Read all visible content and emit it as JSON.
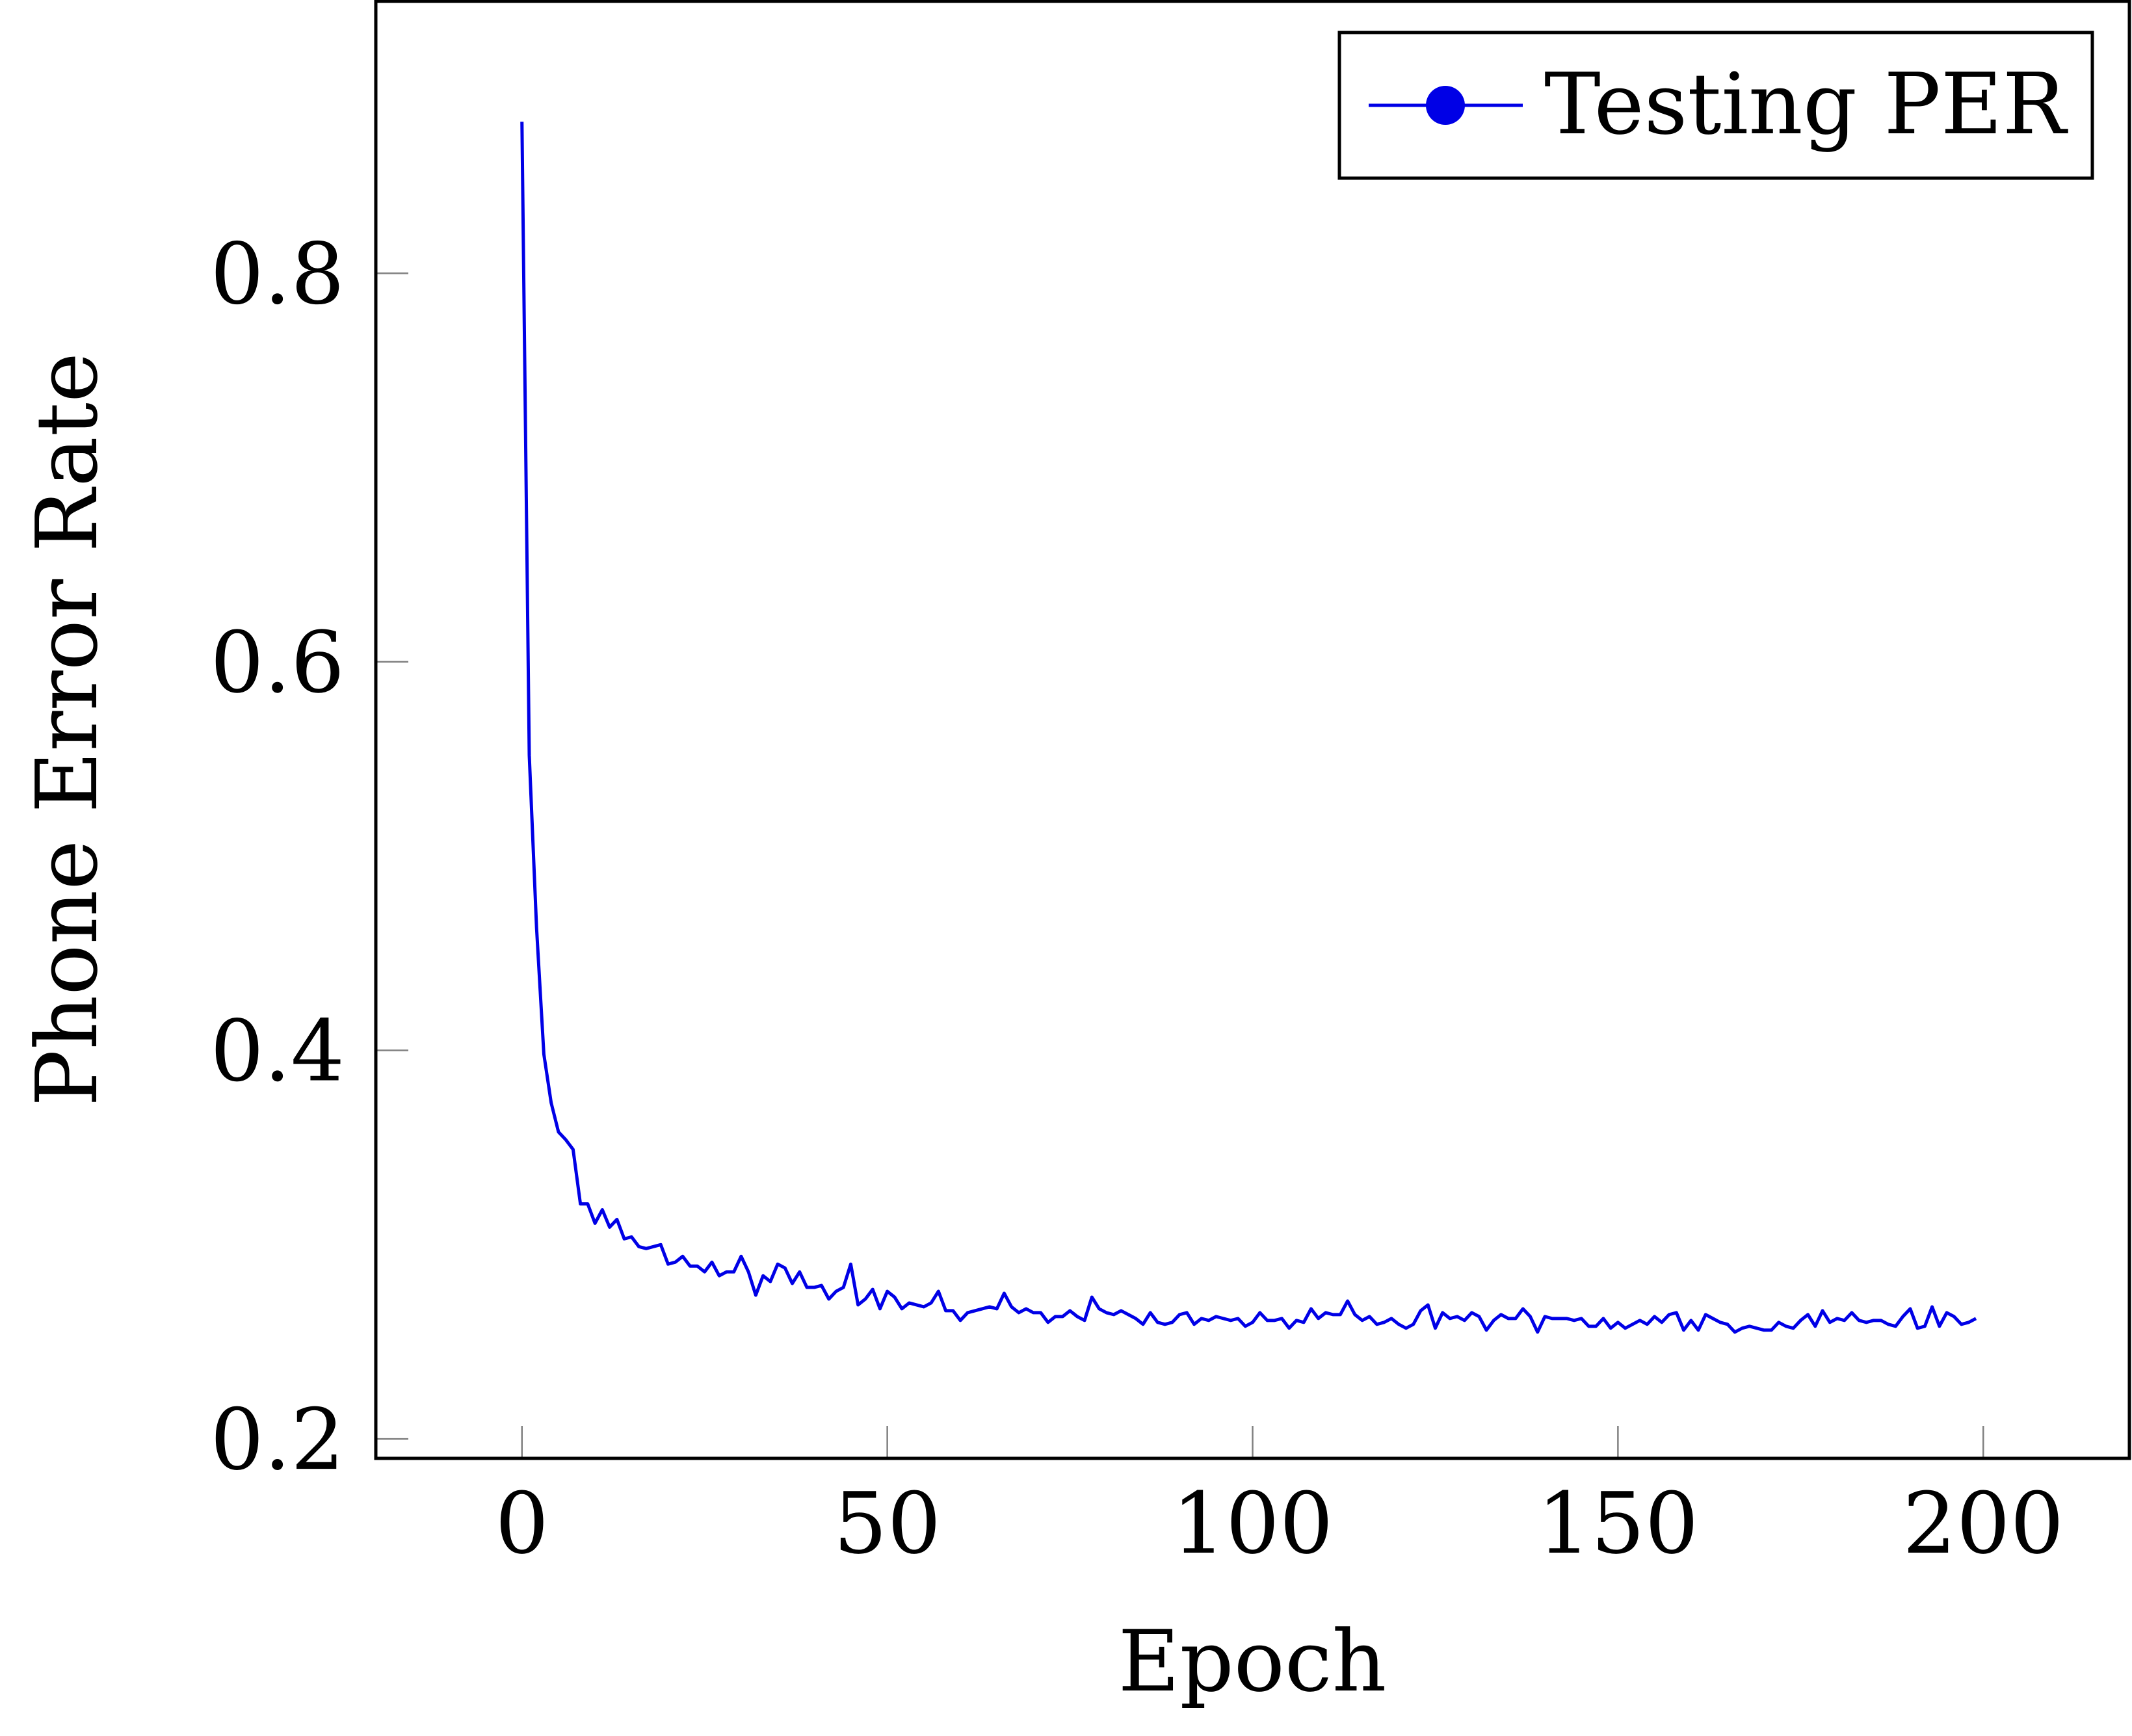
{
  "chart_data": {
    "type": "line",
    "xlabel": "Epoch",
    "ylabel": "Phone Error Rate",
    "xlim": [
      -20,
      220
    ],
    "ylim": [
      0.19,
      0.94
    ],
    "xticks": [
      0,
      50,
      100,
      150,
      200
    ],
    "yticks": [
      0.2,
      0.4,
      0.6,
      0.8
    ],
    "xtick_labels": [
      "0",
      "50",
      "100",
      "150",
      "200"
    ],
    "ytick_labels": [
      "0.2",
      "0.4",
      "0.6",
      "0.8"
    ],
    "legend_position": "top-right",
    "grid": false,
    "series": [
      {
        "name": "Testing PER",
        "color": "#0000e6",
        "marker": "circle",
        "x": [
          0,
          1,
          2,
          3,
          4,
          5,
          6,
          7,
          8,
          9,
          10,
          11,
          12,
          13,
          14,
          15,
          16,
          17,
          18,
          19,
          20,
          21,
          22,
          23,
          24,
          25,
          26,
          27,
          28,
          29,
          30,
          31,
          32,
          33,
          34,
          35,
          36,
          37,
          38,
          39,
          40,
          41,
          42,
          43,
          44,
          45,
          46,
          47,
          48,
          49,
          50,
          51,
          52,
          53,
          54,
          55,
          56,
          57,
          58,
          59,
          60,
          61,
          62,
          63,
          64,
          65,
          66,
          67,
          68,
          69,
          70,
          71,
          72,
          73,
          74,
          75,
          76,
          77,
          78,
          79,
          80,
          81,
          82,
          83,
          84,
          85,
          86,
          87,
          88,
          89,
          90,
          91,
          92,
          93,
          94,
          95,
          96,
          97,
          98,
          99,
          100,
          101,
          102,
          103,
          104,
          105,
          106,
          107,
          108,
          109,
          110,
          111,
          112,
          113,
          114,
          115,
          116,
          117,
          118,
          119,
          120,
          121,
          122,
          123,
          124,
          125,
          126,
          127,
          128,
          129,
          130,
          131,
          132,
          133,
          134,
          135,
          136,
          137,
          138,
          139,
          140,
          141,
          142,
          143,
          144,
          145,
          146,
          147,
          148,
          149,
          150,
          151,
          152,
          153,
          154,
          155,
          156,
          157,
          158,
          159,
          160,
          161,
          162,
          163,
          164,
          165,
          166,
          167,
          168,
          169,
          170,
          171,
          172,
          173,
          174,
          175,
          176,
          177,
          178,
          179,
          180,
          181,
          182,
          183,
          184,
          185,
          186,
          187,
          188,
          189,
          190,
          191,
          192,
          193,
          194,
          195,
          196,
          197,
          198,
          199
        ],
        "values": [
          0.878,
          0.552,
          0.463,
          0.398,
          0.373,
          0.358,
          0.354,
          0.349,
          0.321,
          0.321,
          0.311,
          0.318,
          0.309,
          0.313,
          0.303,
          0.304,
          0.299,
          0.298,
          0.299,
          0.3,
          0.29,
          0.291,
          0.294,
          0.289,
          0.289,
          0.286,
          0.291,
          0.284,
          0.286,
          0.286,
          0.294,
          0.286,
          0.274,
          0.284,
          0.281,
          0.29,
          0.288,
          0.28,
          0.286,
          0.278,
          0.278,
          0.279,
          0.272,
          0.276,
          0.278,
          0.29,
          0.269,
          0.272,
          0.277,
          0.267,
          0.276,
          0.273,
          0.267,
          0.27,
          0.269,
          0.268,
          0.27,
          0.276,
          0.266,
          0.266,
          0.261,
          0.265,
          0.266,
          0.267,
          0.268,
          0.267,
          0.275,
          0.268,
          0.265,
          0.267,
          0.265,
          0.265,
          0.26,
          0.263,
          0.263,
          0.266,
          0.263,
          0.261,
          0.273,
          0.267,
          0.265,
          0.264,
          0.266,
          0.264,
          0.262,
          0.259,
          0.265,
          0.26,
          0.259,
          0.26,
          0.264,
          0.265,
          0.259,
          0.262,
          0.261,
          0.263,
          0.262,
          0.261,
          0.262,
          0.258,
          0.26,
          0.265,
          0.261,
          0.261,
          0.262,
          0.257,
          0.261,
          0.26,
          0.267,
          0.262,
          0.265,
          0.264,
          0.264,
          0.271,
          0.264,
          0.261,
          0.263,
          0.259,
          0.26,
          0.262,
          0.259,
          0.257,
          0.259,
          0.266,
          0.269,
          0.257,
          0.265,
          0.262,
          0.263,
          0.261,
          0.265,
          0.263,
          0.256,
          0.261,
          0.264,
          0.262,
          0.262,
          0.267,
          0.263,
          0.255,
          0.263,
          0.262,
          0.262,
          0.262,
          0.261,
          0.262,
          0.258,
          0.258,
          0.262,
          0.257,
          0.26,
          0.257,
          0.259,
          0.261,
          0.259,
          0.263,
          0.26,
          0.264,
          0.265,
          0.256,
          0.261,
          0.256,
          0.264,
          0.262,
          0.26,
          0.259,
          0.255,
          0.257,
          0.258,
          0.257,
          0.256,
          0.256,
          0.26,
          0.258,
          0.257,
          0.261,
          0.264,
          0.258,
          0.266,
          0.26,
          0.262,
          0.261,
          0.265,
          0.261,
          0.26,
          0.261,
          0.261,
          0.259,
          0.258,
          0.263,
          0.267,
          0.257,
          0.258,
          0.268,
          0.258,
          0.265,
          0.263,
          0.259,
          0.26,
          0.262
        ]
      }
    ]
  }
}
